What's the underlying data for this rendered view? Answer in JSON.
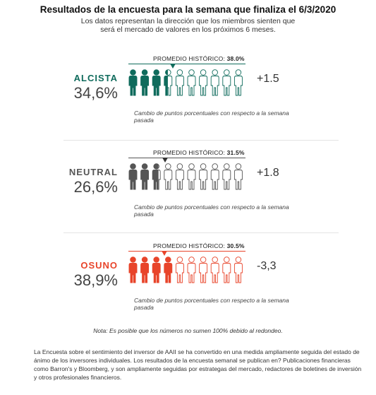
{
  "title": "Resultados de la encuesta para la semana que finaliza el 6/3/2020",
  "subtitle_lines": [
    "Los datos representan la dirección que los miembros sienten que",
    "será el mercado de valores en los próximos 6 meses."
  ],
  "chart_data": {
    "type": "pictogram",
    "icons_per_row": 10,
    "series": [
      {
        "name": "ALCISTA",
        "percent_label": "34,6%",
        "value": 34.6,
        "average_label": "PROMEDIO HISTÓRICO:",
        "average_value_label": "38.0%",
        "average": 38.0,
        "change_label": "+1.5",
        "change_note": "Cambio de puntos porcentuales con respecto a la semana pasada",
        "color": "#0f6b5c"
      },
      {
        "name": "NEUTRAL",
        "percent_label": "26,6%",
        "value": 26.6,
        "average_label": "PROMEDIO HISTÓRICO:",
        "average_value_label": "31.5%",
        "average": 31.5,
        "change_label": "+1.8",
        "change_note": "Cambio de puntos porcentuales con respecto a la semana pasada",
        "color": "#555555"
      },
      {
        "name": "OSUNO",
        "percent_label": "38,9%",
        "value": 38.9,
        "average_label": "PROMEDIO HISTÓRICO:",
        "average_value_label": "30.5%",
        "average": 30.5,
        "change_label": "-3,3",
        "change_note": "Cambio de puntos porcentuales con respecto a la semana pasada",
        "color": "#e8442a"
      }
    ]
  },
  "footnote": "Nota: Es posible que los números no sumen 100% debido al redondeo.",
  "bottom_text": "La Encuesta sobre el sentimiento del inversor de AAII se ha convertido en una medida ampliamente seguida del estado de ánimo de los inversores individuales. Los resultados de la encuesta semanal se publican en? Publicaciones financieras como Barron's y Bloomberg, y son ampliamente seguidas por estrategas del mercado, redactores de boletines de inversión y otros profesionales financieros."
}
